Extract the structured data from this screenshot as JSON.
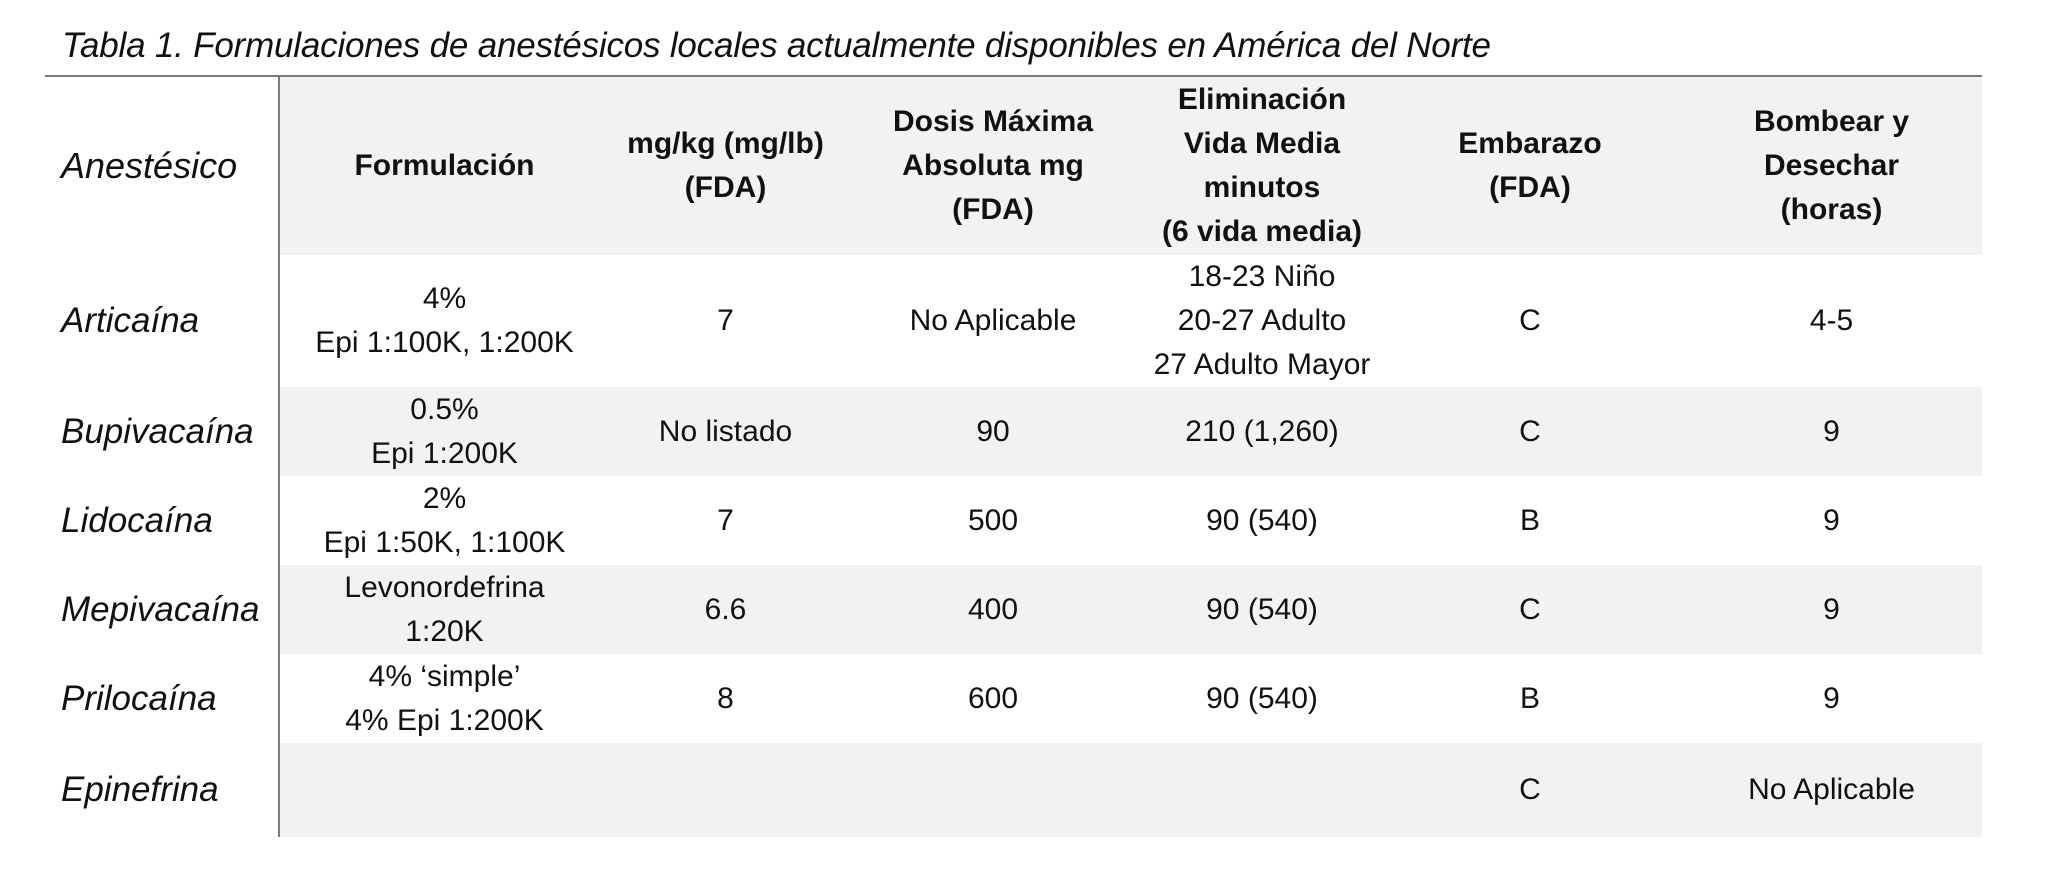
{
  "caption": "Tabla 1. Formulaciones de anestésicos locales actualmente disponibles en América del Norte",
  "headers": {
    "anestesico": "Anestésico",
    "formulacion": "Formulación",
    "mgkg": [
      "mg/kg (mg/lb)",
      "(FDA)"
    ],
    "dosis": [
      "Dosis Máxima",
      "Absoluta mg",
      "(FDA)"
    ],
    "eliminacion": [
      "Eliminación",
      "Vida Media",
      "minutos",
      "(6 vida media)"
    ],
    "embarazo": [
      "Embarazo",
      "(FDA)"
    ],
    "bombear": [
      "Bombear y",
      "Desechar",
      "(horas)"
    ]
  },
  "rows": [
    {
      "anestesico": "Articaína",
      "formulacion": [
        "4%",
        "Epi 1:100K, 1:200K"
      ],
      "mgkg": "7",
      "dosis": "No Aplicable",
      "eliminacion": [
        "18-23 Niño",
        "20-27 Adulto",
        "27 Adulto Mayor"
      ],
      "embarazo": "C",
      "bombear": "4-5"
    },
    {
      "anestesico": "Bupivacaína",
      "formulacion": [
        "0.5%",
        "Epi 1:200K"
      ],
      "mgkg": "No listado",
      "dosis": "90",
      "eliminacion": [
        "210 (1,260)"
      ],
      "embarazo": "C",
      "bombear": "9"
    },
    {
      "anestesico": "Lidocaína",
      "formulacion": [
        "2%",
        "Epi 1:50K, 1:100K"
      ],
      "mgkg": "7",
      "dosis": "500",
      "eliminacion": [
        "90 (540)"
      ],
      "embarazo": "B",
      "bombear": "9"
    },
    {
      "anestesico": "Mepivacaína",
      "formulacion": [
        "Levonordefrina",
        "1:20K"
      ],
      "mgkg": "6.6",
      "dosis": "400",
      "eliminacion": [
        "90 (540)"
      ],
      "embarazo": "C",
      "bombear": "9"
    },
    {
      "anestesico": "Prilocaína",
      "formulacion": [
        "4% ‘simple’",
        "4% Epi 1:200K"
      ],
      "mgkg": "8",
      "dosis": "600",
      "eliminacion": [
        "90 (540)"
      ],
      "embarazo": "B",
      "bombear": "9"
    },
    {
      "anestesico": "Epinefrina",
      "formulacion": [
        ""
      ],
      "mgkg": "",
      "dosis": "",
      "eliminacion": [
        ""
      ],
      "embarazo": "C",
      "bombear": "No Aplicable"
    }
  ]
}
